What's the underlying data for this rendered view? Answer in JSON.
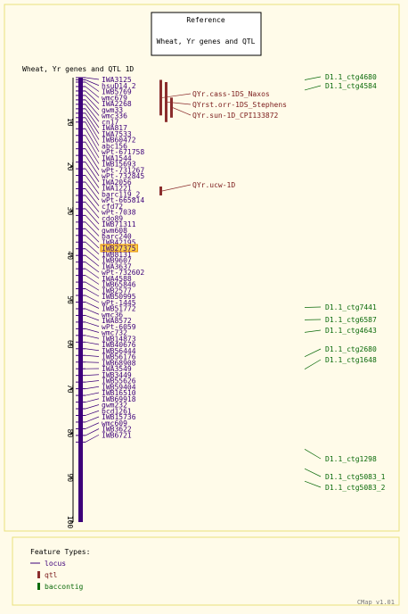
{
  "colors": {
    "background": "#fffbe9",
    "border": "#e8e07a",
    "locus": "#3d007a",
    "qtl_fill": "#8b2d2d",
    "qtl_text": "#7a1a1a",
    "contig": "#0a6a0a",
    "highlight_fill": "#ffd54a",
    "highlight_border": "#e68a00"
  },
  "reference": {
    "title": "Reference",
    "subtitle": "Wheat, Yr genes and QTL"
  },
  "map": {
    "title": "Wheat, Yr genes and QTL 1D",
    "axis": {
      "min": 0,
      "max": 100,
      "ticks": [
        "10",
        "20",
        "30",
        "40",
        "50",
        "60",
        "70",
        "80",
        "90",
        "100"
      ]
    },
    "loci": [
      {
        "name": "IWA3125",
        "pos": 0.0
      },
      {
        "name": "hsuD14.2",
        "pos": 0.5
      },
      {
        "name": "IWB5769",
        "pos": 1.0
      },
      {
        "name": "wmc679",
        "pos": 2.0
      },
      {
        "name": "IWA2268",
        "pos": 3.0
      },
      {
        "name": "gwm33",
        "pos": 4.0
      },
      {
        "name": "wmc336",
        "pos": 5.0
      },
      {
        "name": "cn17",
        "pos": 6.0
      },
      {
        "name": "IWA817",
        "pos": 7.0
      },
      {
        "name": "IWA7533",
        "pos": 8.0
      },
      {
        "name": "IWB60472",
        "pos": 9.0
      },
      {
        "name": "abc156",
        "pos": 10.0
      },
      {
        "name": "wPt-671758",
        "pos": 11.5
      },
      {
        "name": "IWA1544",
        "pos": 13.0
      },
      {
        "name": "IWB15693",
        "pos": 14.5
      },
      {
        "name": "wPt-731267",
        "pos": 16.0
      },
      {
        "name": "wPt-732845",
        "pos": 17.5
      },
      {
        "name": "IWA2056",
        "pos": 19.0
      },
      {
        "name": "IWA1221",
        "pos": 20.5
      },
      {
        "name": "barc119_2",
        "pos": 22.0
      },
      {
        "name": "wPt-665814",
        "pos": 23.5
      },
      {
        "name": "cfd72",
        "pos": 25.0
      },
      {
        "name": "wPt-7038",
        "pos": 26.5
      },
      {
        "name": "cdo89",
        "pos": 28.0
      },
      {
        "name": "IWB71311",
        "pos": 29.5
      },
      {
        "name": "gwm608",
        "pos": 31.0
      },
      {
        "name": "barc240",
        "pos": 32.5
      },
      {
        "name": "IWB42195",
        "pos": 34.0
      },
      {
        "name": "IWB27375",
        "pos": 35.5,
        "highlight": true
      },
      {
        "name": "IWB8131",
        "pos": 37.0
      },
      {
        "name": "IWB9607",
        "pos": 38.5
      },
      {
        "name": "IWA3637",
        "pos": 40.0
      },
      {
        "name": "wPt-732602",
        "pos": 41.5
      },
      {
        "name": "IWA4588",
        "pos": 43.0
      },
      {
        "name": "IWB65846",
        "pos": 44.5
      },
      {
        "name": "IWB2577",
        "pos": 46.0
      },
      {
        "name": "IWB50995",
        "pos": 47.5
      },
      {
        "name": "wPt-1445",
        "pos": 49.0
      },
      {
        "name": "IWB51772",
        "pos": 50.5
      },
      {
        "name": "wmc36",
        "pos": 52.0
      },
      {
        "name": "IWA8572",
        "pos": 53.5
      },
      {
        "name": "wPt-6059",
        "pos": 55.0
      },
      {
        "name": "wmc732",
        "pos": 56.5
      },
      {
        "name": "IWB14873",
        "pos": 58.0
      },
      {
        "name": "IWB40676",
        "pos": 59.5
      },
      {
        "name": "IWB56444",
        "pos": 61.0
      },
      {
        "name": "IWB56176",
        "pos": 62.5
      },
      {
        "name": "IWB68908",
        "pos": 64.0
      },
      {
        "name": "IWA3549",
        "pos": 65.5
      },
      {
        "name": "IWB3449",
        "pos": 67.0
      },
      {
        "name": "IWB55626",
        "pos": 68.5
      },
      {
        "name": "IWB59404",
        "pos": 70.0
      },
      {
        "name": "IWB16510",
        "pos": 71.5
      },
      {
        "name": "IWB69918",
        "pos": 73.0
      },
      {
        "name": "gwm232",
        "pos": 74.5
      },
      {
        "name": "bcd1261",
        "pos": 76.0
      },
      {
        "name": "IWB15736",
        "pos": 77.5
      },
      {
        "name": "wmc609",
        "pos": 79.0
      },
      {
        "name": "IWB3622",
        "pos": 80.5
      },
      {
        "name": "IWB6721",
        "pos": 82.0
      }
    ]
  },
  "qtls": [
    {
      "name": "QYr.cass-1DS_Naxos",
      "start": 0.5,
      "end": 8.5
    },
    {
      "name": "QYrst.orr-1DS_Stephens",
      "start": 1.0,
      "end": 10.0
    },
    {
      "name": "QYr.sun-1D_CPI133872",
      "start": 4.5,
      "end": 9.0
    },
    {
      "name": "QYr.ucw-1D",
      "start": 24.5,
      "end": 26.5
    }
  ],
  "contigs": [
    {
      "name": "D1.1_ctg4680",
      "pos": 0.5
    },
    {
      "name": "D1.1_ctg4584",
      "pos": 2.8
    },
    {
      "name": "D1.1_ctg7441",
      "pos": 51.7
    },
    {
      "name": "D1.1_ctg6587",
      "pos": 54.5
    },
    {
      "name": "D1.1_ctg4643",
      "pos": 57.3
    },
    {
      "name": "D1.1_ctg2680",
      "pos": 62.8
    },
    {
      "name": "D1.1_ctg1648",
      "pos": 65.6
    },
    {
      "name": "D1.1_ctg1298",
      "pos": 83.6
    },
    {
      "name": "D1.1_ctg5083_1",
      "pos": 88.0
    },
    {
      "name": "D1.1_ctg5083_2",
      "pos": 90.8
    }
  ],
  "legend": {
    "title": "Feature Types:",
    "items": [
      {
        "label": "locus",
        "kind": "locus"
      },
      {
        "label": "qtl",
        "kind": "qtl"
      },
      {
        "label": "baccontig",
        "kind": "baccontig"
      }
    ]
  },
  "footer": "CMap v1.01"
}
